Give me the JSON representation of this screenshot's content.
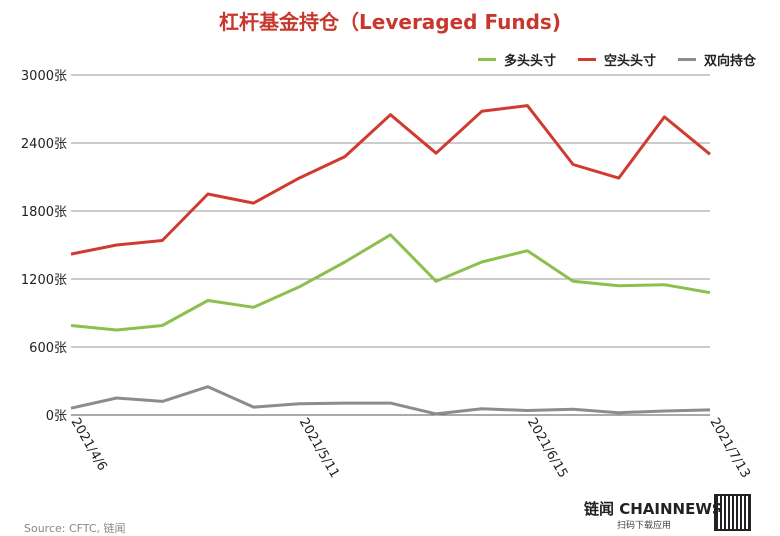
{
  "chart_data": {
    "type": "line",
    "title": "杠杆基金持仓（Leveraged Funds)",
    "x": [
      "2021/4/6",
      "2021/4/13",
      "2021/4/20",
      "2021/4/27",
      "2021/5/4",
      "2021/5/11",
      "2021/5/18",
      "2021/5/25",
      "2021/6/1",
      "2021/6/8",
      "2021/6/15",
      "2021/6/22",
      "2021/6/29",
      "2021/7/6",
      "2021/7/13"
    ],
    "x_tick_labels": [
      "2021/4/6",
      "2021/5/11",
      "2021/6/15",
      "2021/7/13"
    ],
    "series": [
      {
        "name": "多头头寸",
        "color": "#8dbf4f",
        "values": [
          790,
          750,
          790,
          1010,
          950,
          1130,
          1350,
          1590,
          1180,
          1350,
          1450,
          1180,
          1140,
          1150,
          1080
        ]
      },
      {
        "name": "空头头寸",
        "color": "#d13a30",
        "values": [
          1420,
          1500,
          1540,
          1950,
          1870,
          2090,
          2280,
          2650,
          2310,
          2680,
          2730,
          2210,
          2090,
          2630,
          2300
        ]
      },
      {
        "name": "双向持仓",
        "color": "#8c8c8c",
        "values": [
          60,
          150,
          120,
          250,
          70,
          100,
          105,
          105,
          10,
          55,
          40,
          50,
          20,
          35,
          45
        ]
      }
    ],
    "ylim": [
      0,
      3000
    ],
    "y_ticks": [
      0,
      600,
      1200,
      1800,
      2400,
      3000
    ],
    "y_unit": "张",
    "grid": true,
    "legend": "top-right"
  },
  "footer": {
    "brand": "链闻 CHAINNEWS",
    "sub": "扫码下载应用",
    "source": "Source: CFTC, 链闻"
  }
}
